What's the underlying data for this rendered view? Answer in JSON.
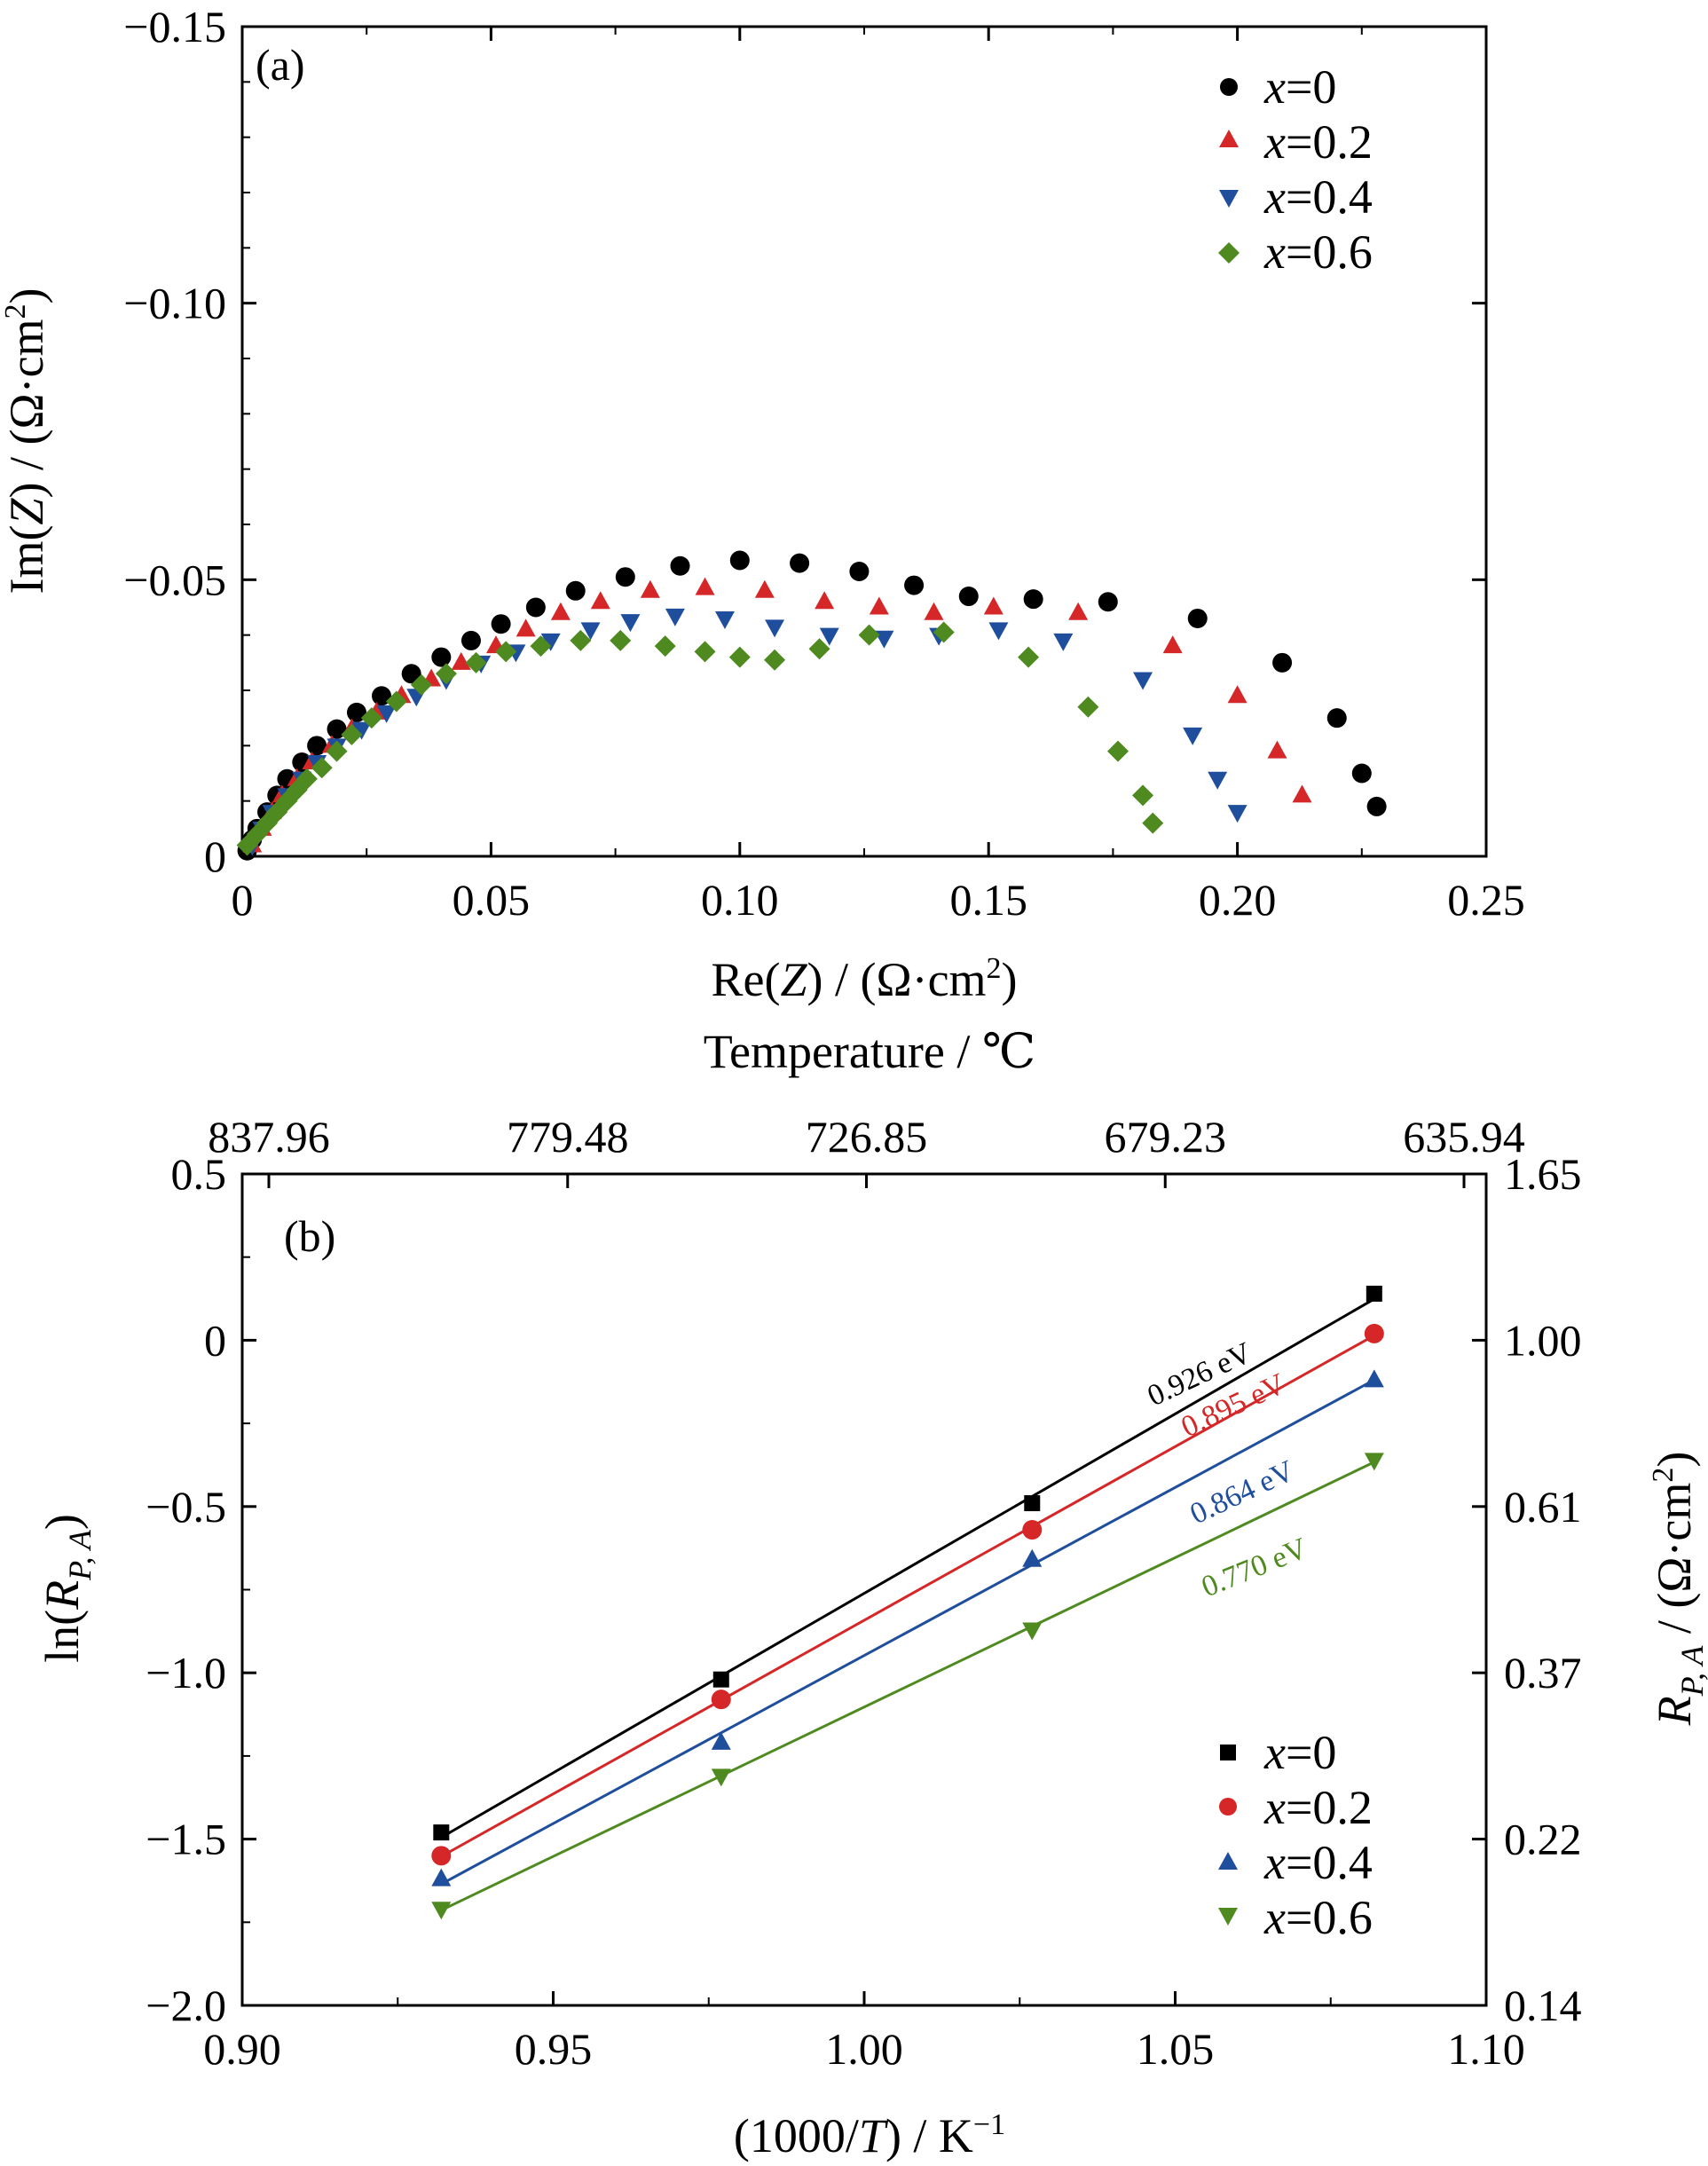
{
  "chart_data": [
    {
      "panel": "(a)",
      "type": "scatter",
      "xlabel_parts": [
        "Re(",
        "Z",
        ") / (Ω·cm",
        "2",
        ")"
      ],
      "ylabel_parts": [
        "Im(",
        "Z",
        ") / (Ω·cm",
        "2",
        ")"
      ],
      "xlim": [
        0,
        0.25
      ],
      "ylim": [
        0,
        -0.15
      ],
      "x_ticks": [
        "0",
        "0.05",
        "0.10",
        "0.15",
        "0.20",
        "0.25"
      ],
      "y_ticks": [
        "0",
        "−0.05",
        "−0.10",
        "−0.15"
      ],
      "legend_position": "top-right",
      "series": [
        {
          "name": "x=0",
          "x_var": "x",
          "x_val": "=0",
          "marker": "circle",
          "color": "#000000",
          "x": [
            0.001,
            0.002,
            0.003,
            0.005,
            0.007,
            0.009,
            0.012,
            0.015,
            0.019,
            0.023,
            0.028,
            0.034,
            0.04,
            0.046,
            0.052,
            0.059,
            0.067,
            0.077,
            0.088,
            0.1,
            0.112,
            0.124,
            0.135,
            0.146,
            0.159,
            0.174,
            0.192,
            0.209,
            0.22,
            0.225,
            0.228
          ],
          "y": [
            -0.001,
            -0.003,
            -0.005,
            -0.008,
            -0.011,
            -0.014,
            -0.017,
            -0.02,
            -0.023,
            -0.026,
            -0.029,
            -0.033,
            -0.036,
            -0.039,
            -0.042,
            -0.045,
            -0.048,
            -0.0505,
            -0.0525,
            -0.0535,
            -0.053,
            -0.0515,
            -0.049,
            -0.047,
            -0.0465,
            -0.046,
            -0.043,
            -0.035,
            -0.025,
            -0.015,
            -0.009
          ]
        },
        {
          "name": "x=0.2",
          "x_var": "x",
          "x_val": "=0.2",
          "marker": "triangle-up",
          "color": "#d62728",
          "x": [
            0.002,
            0.004,
            0.006,
            0.008,
            0.011,
            0.014,
            0.018,
            0.022,
            0.027,
            0.032,
            0.038,
            0.044,
            0.051,
            0.057,
            0.064,
            0.072,
            0.082,
            0.093,
            0.105,
            0.117,
            0.128,
            0.139,
            0.151,
            0.168,
            0.187,
            0.2,
            0.208,
            0.213
          ],
          "y": [
            -0.002,
            -0.005,
            -0.008,
            -0.011,
            -0.014,
            -0.017,
            -0.02,
            -0.023,
            -0.026,
            -0.029,
            -0.032,
            -0.035,
            -0.038,
            -0.041,
            -0.044,
            -0.046,
            -0.048,
            -0.0485,
            -0.048,
            -0.046,
            -0.045,
            -0.044,
            -0.045,
            -0.044,
            -0.038,
            -0.029,
            -0.019,
            -0.011
          ]
        },
        {
          "name": "x=0.4",
          "x_var": "x",
          "x_val": "=0.4",
          "marker": "triangle-down",
          "color": "#1f4e9c",
          "x": [
            0.002,
            0.004,
            0.006,
            0.009,
            0.012,
            0.015,
            0.019,
            0.024,
            0.029,
            0.035,
            0.041,
            0.048,
            0.055,
            0.062,
            0.07,
            0.078,
            0.087,
            0.097,
            0.107,
            0.118,
            0.129,
            0.14,
            0.152,
            0.165,
            0.181,
            0.191,
            0.196,
            0.2
          ],
          "y": [
            -0.002,
            -0.005,
            -0.008,
            -0.011,
            -0.014,
            -0.017,
            -0.02,
            -0.023,
            -0.026,
            -0.029,
            -0.032,
            -0.035,
            -0.037,
            -0.039,
            -0.041,
            -0.0425,
            -0.0435,
            -0.043,
            -0.0415,
            -0.04,
            -0.0395,
            -0.04,
            -0.041,
            -0.039,
            -0.032,
            -0.022,
            -0.014,
            -0.008
          ]
        },
        {
          "name": "x=0.6",
          "x_var": "x",
          "x_val": "=0.6",
          "marker": "diamond",
          "color": "#4e8a1f",
          "x": [
            0.001,
            0.003,
            0.005,
            0.007,
            0.009,
            0.011,
            0.013,
            0.016,
            0.019,
            0.022,
            0.026,
            0.031,
            0.036,
            0.041,
            0.047,
            0.053,
            0.06,
            0.068,
            0.076,
            0.085,
            0.093,
            0.1,
            0.107,
            0.116,
            0.126,
            0.141,
            0.158,
            0.17,
            0.176,
            0.181,
            0.183
          ],
          "y": [
            -0.002,
            -0.004,
            -0.006,
            -0.008,
            -0.01,
            -0.012,
            -0.014,
            -0.016,
            -0.019,
            -0.022,
            -0.025,
            -0.028,
            -0.031,
            -0.033,
            -0.035,
            -0.037,
            -0.038,
            -0.039,
            -0.039,
            -0.038,
            -0.037,
            -0.036,
            -0.0355,
            -0.0375,
            -0.04,
            -0.0405,
            -0.036,
            -0.027,
            -0.019,
            -0.011,
            -0.006
          ]
        }
      ]
    },
    {
      "panel": "(b)",
      "type": "scatter",
      "xlabel_parts": [
        "(1000/",
        "T",
        ") / K",
        "−1",
        ""
      ],
      "ylabel_parts": [
        "ln(",
        "R",
        "P, A",
        ")"
      ],
      "y2label_parts": [
        "R",
        "P, A",
        " / (Ω·cm",
        "2",
        ")"
      ],
      "top_axis_label": "Temperature  / ℃",
      "xlim": [
        0.9,
        1.1
      ],
      "ylim": [
        -2.0,
        0.5
      ],
      "x_ticks": [
        "0.90",
        "0.95",
        "1.00",
        "1.05",
        "1.10"
      ],
      "y_ticks": [
        "0.5",
        "0",
        "−0.5",
        "−1.0",
        "−1.5",
        "−2.0"
      ],
      "top_ticks": [
        "837.96",
        "779.48",
        "726.85",
        "679.23",
        "635.94"
      ],
      "right_ticks": [
        "1.65",
        "1.00",
        "0.61",
        "0.37",
        "0.22",
        "0.14"
      ],
      "legend_position": "bottom-right",
      "x": [
        0.932,
        0.977,
        1.027,
        1.082
      ],
      "series": [
        {
          "name": "x=0",
          "x_var": "x",
          "x_val": "=0",
          "marker": "square",
          "color": "#000000",
          "y": [
            -1.48,
            -1.02,
            -0.49,
            0.14
          ],
          "fit_label": "0.926 eV"
        },
        {
          "name": "x=0.2",
          "x_var": "x",
          "x_val": "=0.2",
          "marker": "circle",
          "color": "#d62728",
          "y": [
            -1.55,
            -1.08,
            -0.57,
            0.02
          ],
          "fit_label": "0.895 eV"
        },
        {
          "name": "x=0.4",
          "x_var": "x",
          "x_val": "=0.4",
          "marker": "triangle-up",
          "color": "#1f4e9c",
          "y": [
            -1.62,
            -1.21,
            -0.66,
            -0.12
          ],
          "fit_label": "0.864 eV"
        },
        {
          "name": "x=0.6",
          "x_var": "x",
          "x_val": "=0.6",
          "marker": "triangle-down",
          "color": "#4e8a1f",
          "y": [
            -1.71,
            -1.31,
            -0.87,
            -0.36
          ],
          "fit_label": "0.770 eV"
        }
      ]
    }
  ]
}
